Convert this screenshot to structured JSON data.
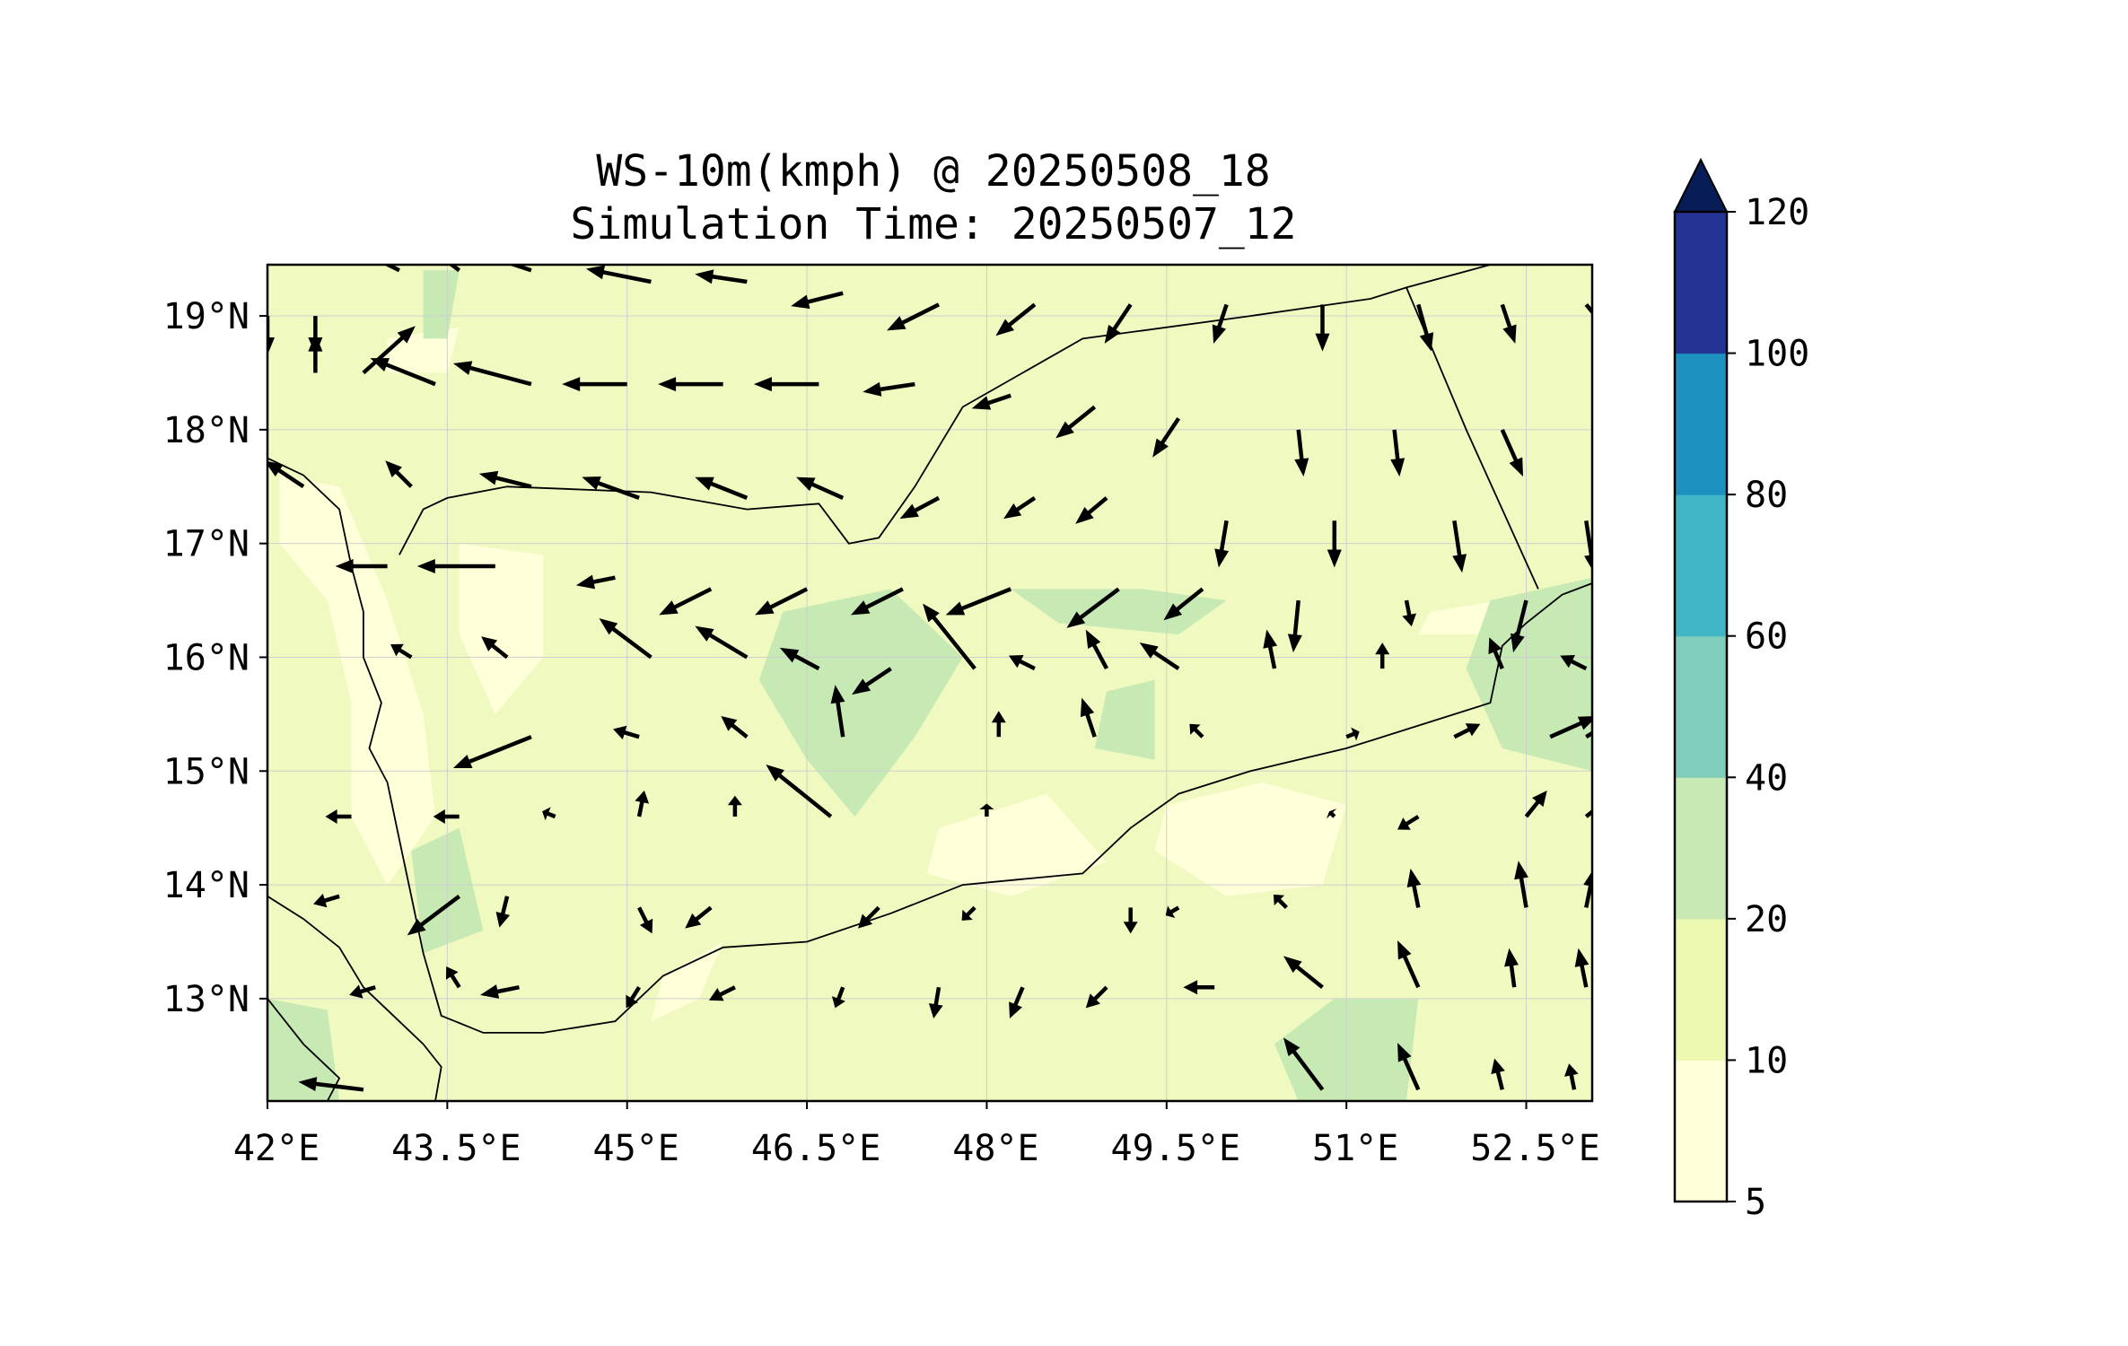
{
  "title": {
    "line1": "WS-10m(kmph) @ 20250508_18",
    "line2": "Simulation Time: 20250507_12"
  },
  "map": {
    "lon_range": [
      42.0,
      53.05
    ],
    "lat_range": [
      12.1,
      19.45
    ],
    "x_ticks": [
      {
        "value": 42.0,
        "label": "42°E"
      },
      {
        "value": 43.5,
        "label": "43.5°E"
      },
      {
        "value": 45.0,
        "label": "45°E"
      },
      {
        "value": 46.5,
        "label": "46.5°E"
      },
      {
        "value": 48.0,
        "label": "48°E"
      },
      {
        "value": 49.5,
        "label": "49.5°E"
      },
      {
        "value": 51.0,
        "label": "51°E"
      },
      {
        "value": 52.5,
        "label": "52.5°E"
      }
    ],
    "y_ticks": [
      {
        "value": 19,
        "label": "19°N"
      },
      {
        "value": 18,
        "label": "18°N"
      },
      {
        "value": 17,
        "label": "17°N"
      },
      {
        "value": 16,
        "label": "16°N"
      },
      {
        "value": 15,
        "label": "15°N"
      },
      {
        "value": 14,
        "label": "14°N"
      },
      {
        "value": 13,
        "label": "13°N"
      }
    ],
    "grid": true,
    "background_color": "#f0f9c0",
    "land_boundaries": "country borders and coastlines",
    "wind_vectors": [
      [
        42.0,
        19.0,
        0,
        -15
      ],
      [
        42.4,
        19.0,
        0,
        -15
      ],
      [
        42.4,
        18.5,
        0,
        15
      ],
      [
        42.8,
        18.5,
        20,
        18
      ],
      [
        43.1,
        19.4,
        -20,
        10
      ],
      [
        43.6,
        19.4,
        -20,
        15
      ],
      [
        44.2,
        19.4,
        -30,
        10
      ],
      [
        45.2,
        19.3,
        -25,
        5
      ],
      [
        46.0,
        19.3,
        -20,
        3
      ],
      [
        46.8,
        19.2,
        -20,
        -5
      ],
      [
        47.6,
        19.1,
        -20,
        -10
      ],
      [
        48.4,
        19.1,
        -15,
        -12
      ],
      [
        49.2,
        19.1,
        -10,
        -15
      ],
      [
        50.0,
        19.1,
        -5,
        -15
      ],
      [
        50.8,
        19.1,
        0,
        -18
      ],
      [
        51.6,
        19.1,
        5,
        -18
      ],
      [
        52.3,
        19.1,
        5,
        -15
      ],
      [
        53.0,
        19.1,
        10,
        -12
      ],
      [
        43.4,
        18.4,
        -25,
        10
      ],
      [
        44.2,
        18.4,
        -30,
        8
      ],
      [
        45.0,
        18.4,
        -25,
        0
      ],
      [
        45.8,
        18.4,
        -25,
        0
      ],
      [
        46.6,
        18.4,
        -25,
        0
      ],
      [
        47.4,
        18.4,
        -20,
        -3
      ],
      [
        48.2,
        18.3,
        -15,
        -5
      ],
      [
        48.9,
        18.2,
        -15,
        -12
      ],
      [
        49.6,
        18.1,
        -10,
        -15
      ],
      [
        50.6,
        18.0,
        2,
        -18
      ],
      [
        51.4,
        18.0,
        2,
        -18
      ],
      [
        52.3,
        18.0,
        8,
        -18
      ],
      [
        42.3,
        17.5,
        -15,
        10
      ],
      [
        43.2,
        17.5,
        -10,
        10
      ],
      [
        44.2,
        17.5,
        -20,
        5
      ],
      [
        45.1,
        17.4,
        -22,
        8
      ],
      [
        46.0,
        17.4,
        -20,
        8
      ],
      [
        46.8,
        17.4,
        -18,
        8
      ],
      [
        47.6,
        17.4,
        -15,
        -8
      ],
      [
        48.4,
        17.4,
        -12,
        -8
      ],
      [
        49.0,
        17.4,
        -12,
        -10
      ],
      [
        50.0,
        17.2,
        -3,
        -18
      ],
      [
        50.9,
        17.2,
        0,
        -18
      ],
      [
        51.9,
        17.2,
        3,
        -20
      ],
      [
        53.0,
        17.2,
        3,
        -20
      ],
      [
        43.0,
        16.8,
        -20,
        0
      ],
      [
        43.9,
        16.8,
        -30,
        0
      ],
      [
        44.9,
        16.7,
        -15,
        -3
      ],
      [
        45.7,
        16.6,
        -20,
        -10
      ],
      [
        46.5,
        16.6,
        -20,
        -10
      ],
      [
        47.3,
        16.6,
        -20,
        -10
      ],
      [
        48.2,
        16.6,
        -25,
        -10
      ],
      [
        49.1,
        16.6,
        -20,
        -15
      ],
      [
        49.8,
        16.6,
        -15,
        -12
      ],
      [
        50.6,
        16.5,
        -2,
        -20
      ],
      [
        51.5,
        16.5,
        2,
        -10
      ],
      [
        52.5,
        16.5,
        -5,
        -20
      ],
      [
        43.2,
        16.0,
        -8,
        5
      ],
      [
        44.0,
        16.0,
        -10,
        8
      ],
      [
        45.2,
        16.0,
        -20,
        15
      ],
      [
        46.0,
        16.0,
        -20,
        12
      ],
      [
        46.6,
        15.9,
        -15,
        8
      ],
      [
        47.2,
        15.9,
        -15,
        -10
      ],
      [
        47.9,
        15.9,
        -20,
        25
      ],
      [
        48.4,
        15.9,
        -10,
        5
      ],
      [
        49.0,
        15.9,
        -8,
        15
      ],
      [
        49.6,
        15.9,
        -15,
        10
      ],
      [
        50.4,
        15.9,
        -3,
        15
      ],
      [
        51.3,
        15.9,
        0,
        10
      ],
      [
        52.3,
        15.9,
        -5,
        12
      ],
      [
        53.0,
        15.9,
        -10,
        5
      ],
      [
        44.2,
        15.3,
        -30,
        -12
      ],
      [
        45.1,
        15.3,
        -10,
        3
      ],
      [
        46.0,
        15.3,
        -10,
        8
      ],
      [
        46.8,
        15.3,
        -3,
        20
      ],
      [
        48.1,
        15.3,
        0,
        10
      ],
      [
        48.9,
        15.3,
        -5,
        15
      ],
      [
        49.8,
        15.3,
        -5,
        5
      ],
      [
        51.0,
        15.3,
        5,
        2
      ],
      [
        51.9,
        15.3,
        10,
        5
      ],
      [
        52.7,
        15.3,
        18,
        8
      ],
      [
        53.0,
        15.3,
        8,
        5
      ],
      [
        42.7,
        14.6,
        -10,
        0
      ],
      [
        43.6,
        14.6,
        -10,
        0
      ],
      [
        44.4,
        14.6,
        -5,
        2
      ],
      [
        45.1,
        14.6,
        2,
        10
      ],
      [
        45.9,
        14.6,
        0,
        8
      ],
      [
        46.7,
        14.6,
        -25,
        20
      ],
      [
        48.0,
        14.6,
        0,
        5
      ],
      [
        50.9,
        14.6,
        -2,
        2
      ],
      [
        51.6,
        14.6,
        -8,
        -5
      ],
      [
        52.5,
        14.6,
        8,
        10
      ],
      [
        53.0,
        14.6,
        10,
        8
      ],
      [
        42.6,
        13.9,
        -10,
        -3
      ],
      [
        43.6,
        13.9,
        -20,
        -15
      ],
      [
        44.0,
        13.9,
        -3,
        -12
      ],
      [
        45.1,
        13.8,
        5,
        -10
      ],
      [
        45.7,
        13.8,
        -10,
        -8
      ],
      [
        47.1,
        13.8,
        -8,
        -8
      ],
      [
        47.9,
        13.8,
        -5,
        -5
      ],
      [
        49.2,
        13.8,
        0,
        -10
      ],
      [
        49.6,
        13.8,
        -5,
        -3
      ],
      [
        50.5,
        13.8,
        -5,
        5
      ],
      [
        51.6,
        13.8,
        -3,
        15
      ],
      [
        52.5,
        13.8,
        -3,
        18
      ],
      [
        53.0,
        13.8,
        3,
        15
      ],
      [
        42.9,
        13.1,
        -10,
        -3
      ],
      [
        43.6,
        13.1,
        -5,
        8
      ],
      [
        44.1,
        13.1,
        -15,
        -3
      ],
      [
        45.1,
        13.1,
        -5,
        -8
      ],
      [
        45.9,
        13.1,
        -10,
        -5
      ],
      [
        46.8,
        13.1,
        -3,
        -8
      ],
      [
        47.6,
        13.1,
        -2,
        -12
      ],
      [
        48.3,
        13.1,
        -5,
        -12
      ],
      [
        49.0,
        13.1,
        -8,
        -8
      ],
      [
        49.9,
        13.1,
        -12,
        0
      ],
      [
        50.8,
        13.1,
        -15,
        12
      ],
      [
        51.6,
        13.1,
        -8,
        18
      ],
      [
        52.4,
        13.1,
        -2,
        15
      ],
      [
        53.0,
        13.1,
        -3,
        15
      ],
      [
        42.8,
        12.2,
        -25,
        3
      ],
      [
        50.8,
        12.2,
        -15,
        20
      ],
      [
        51.6,
        12.2,
        -8,
        18
      ],
      [
        52.3,
        12.2,
        -3,
        12
      ],
      [
        52.9,
        12.2,
        -2,
        10
      ]
    ]
  },
  "colorbar": {
    "levels": [
      "5",
      "10",
      "20",
      "40",
      "60",
      "80",
      "100",
      "120"
    ],
    "colors": [
      "#ffffd9",
      "#edf8b1",
      "#c7e9b4",
      "#7fcdbb",
      "#41b6c4",
      "#1d91c0",
      "#253494",
      "#081d58"
    ],
    "extend": "max"
  }
}
